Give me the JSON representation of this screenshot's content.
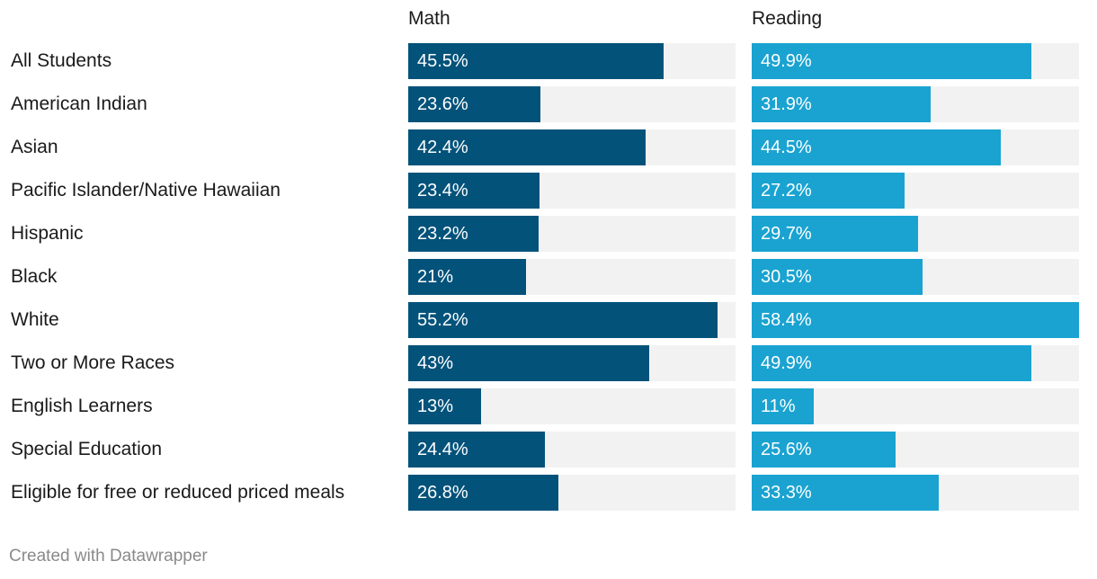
{
  "chart_data": {
    "type": "bar",
    "orientation": "horizontal",
    "layout": "split-columns",
    "title": "",
    "categories": [
      "All Students",
      "American Indian",
      "Asian",
      "Pacific Islander/Native Hawaiian",
      "Hispanic",
      "Black",
      "White",
      "Two or More Races",
      "English Learners",
      "Special Education",
      "Eligible for free or reduced priced meals"
    ],
    "series": [
      {
        "name": "Math",
        "color": "#03527a",
        "values": [
          45.5,
          23.6,
          42.4,
          23.4,
          23.2,
          21,
          55.2,
          43,
          13,
          24.4,
          26.8
        ],
        "labels": [
          "45.5%",
          "23.6%",
          "42.4%",
          "23.4%",
          "23.2%",
          "21%",
          "55.2%",
          "43%",
          "13%",
          "24.4%",
          "26.8%"
        ]
      },
      {
        "name": "Reading",
        "color": "#1aa3d1",
        "values": [
          49.9,
          31.9,
          44.5,
          27.2,
          29.7,
          30.5,
          58.4,
          49.9,
          11,
          25.6,
          33.3
        ],
        "labels": [
          "49.9%",
          "31.9%",
          "44.5%",
          "27.2%",
          "29.7%",
          "30.5%",
          "58.4%",
          "49.9%",
          "11%",
          "25.6%",
          "33.3%"
        ]
      }
    ],
    "xlim": [
      0,
      58.4
    ],
    "track_color": "#f2f2f2",
    "grid": false
  },
  "footer": {
    "credit": "Created with Datawrapper"
  }
}
